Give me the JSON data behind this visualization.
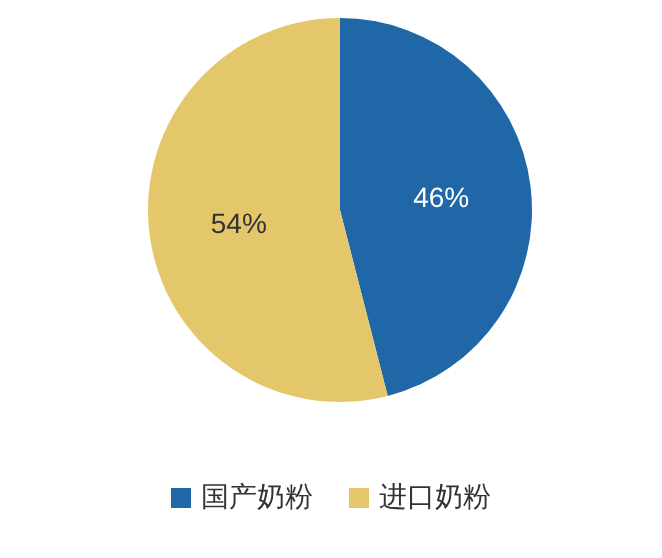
{
  "chart_data": {
    "type": "pie",
    "categories": [
      "国产奶粉",
      "进口奶粉"
    ],
    "values": [
      46,
      54
    ],
    "colors": [
      "#1f67a6",
      "#e4c76a"
    ],
    "value_labels": [
      "46%",
      "54%"
    ],
    "legend": "bottom"
  }
}
